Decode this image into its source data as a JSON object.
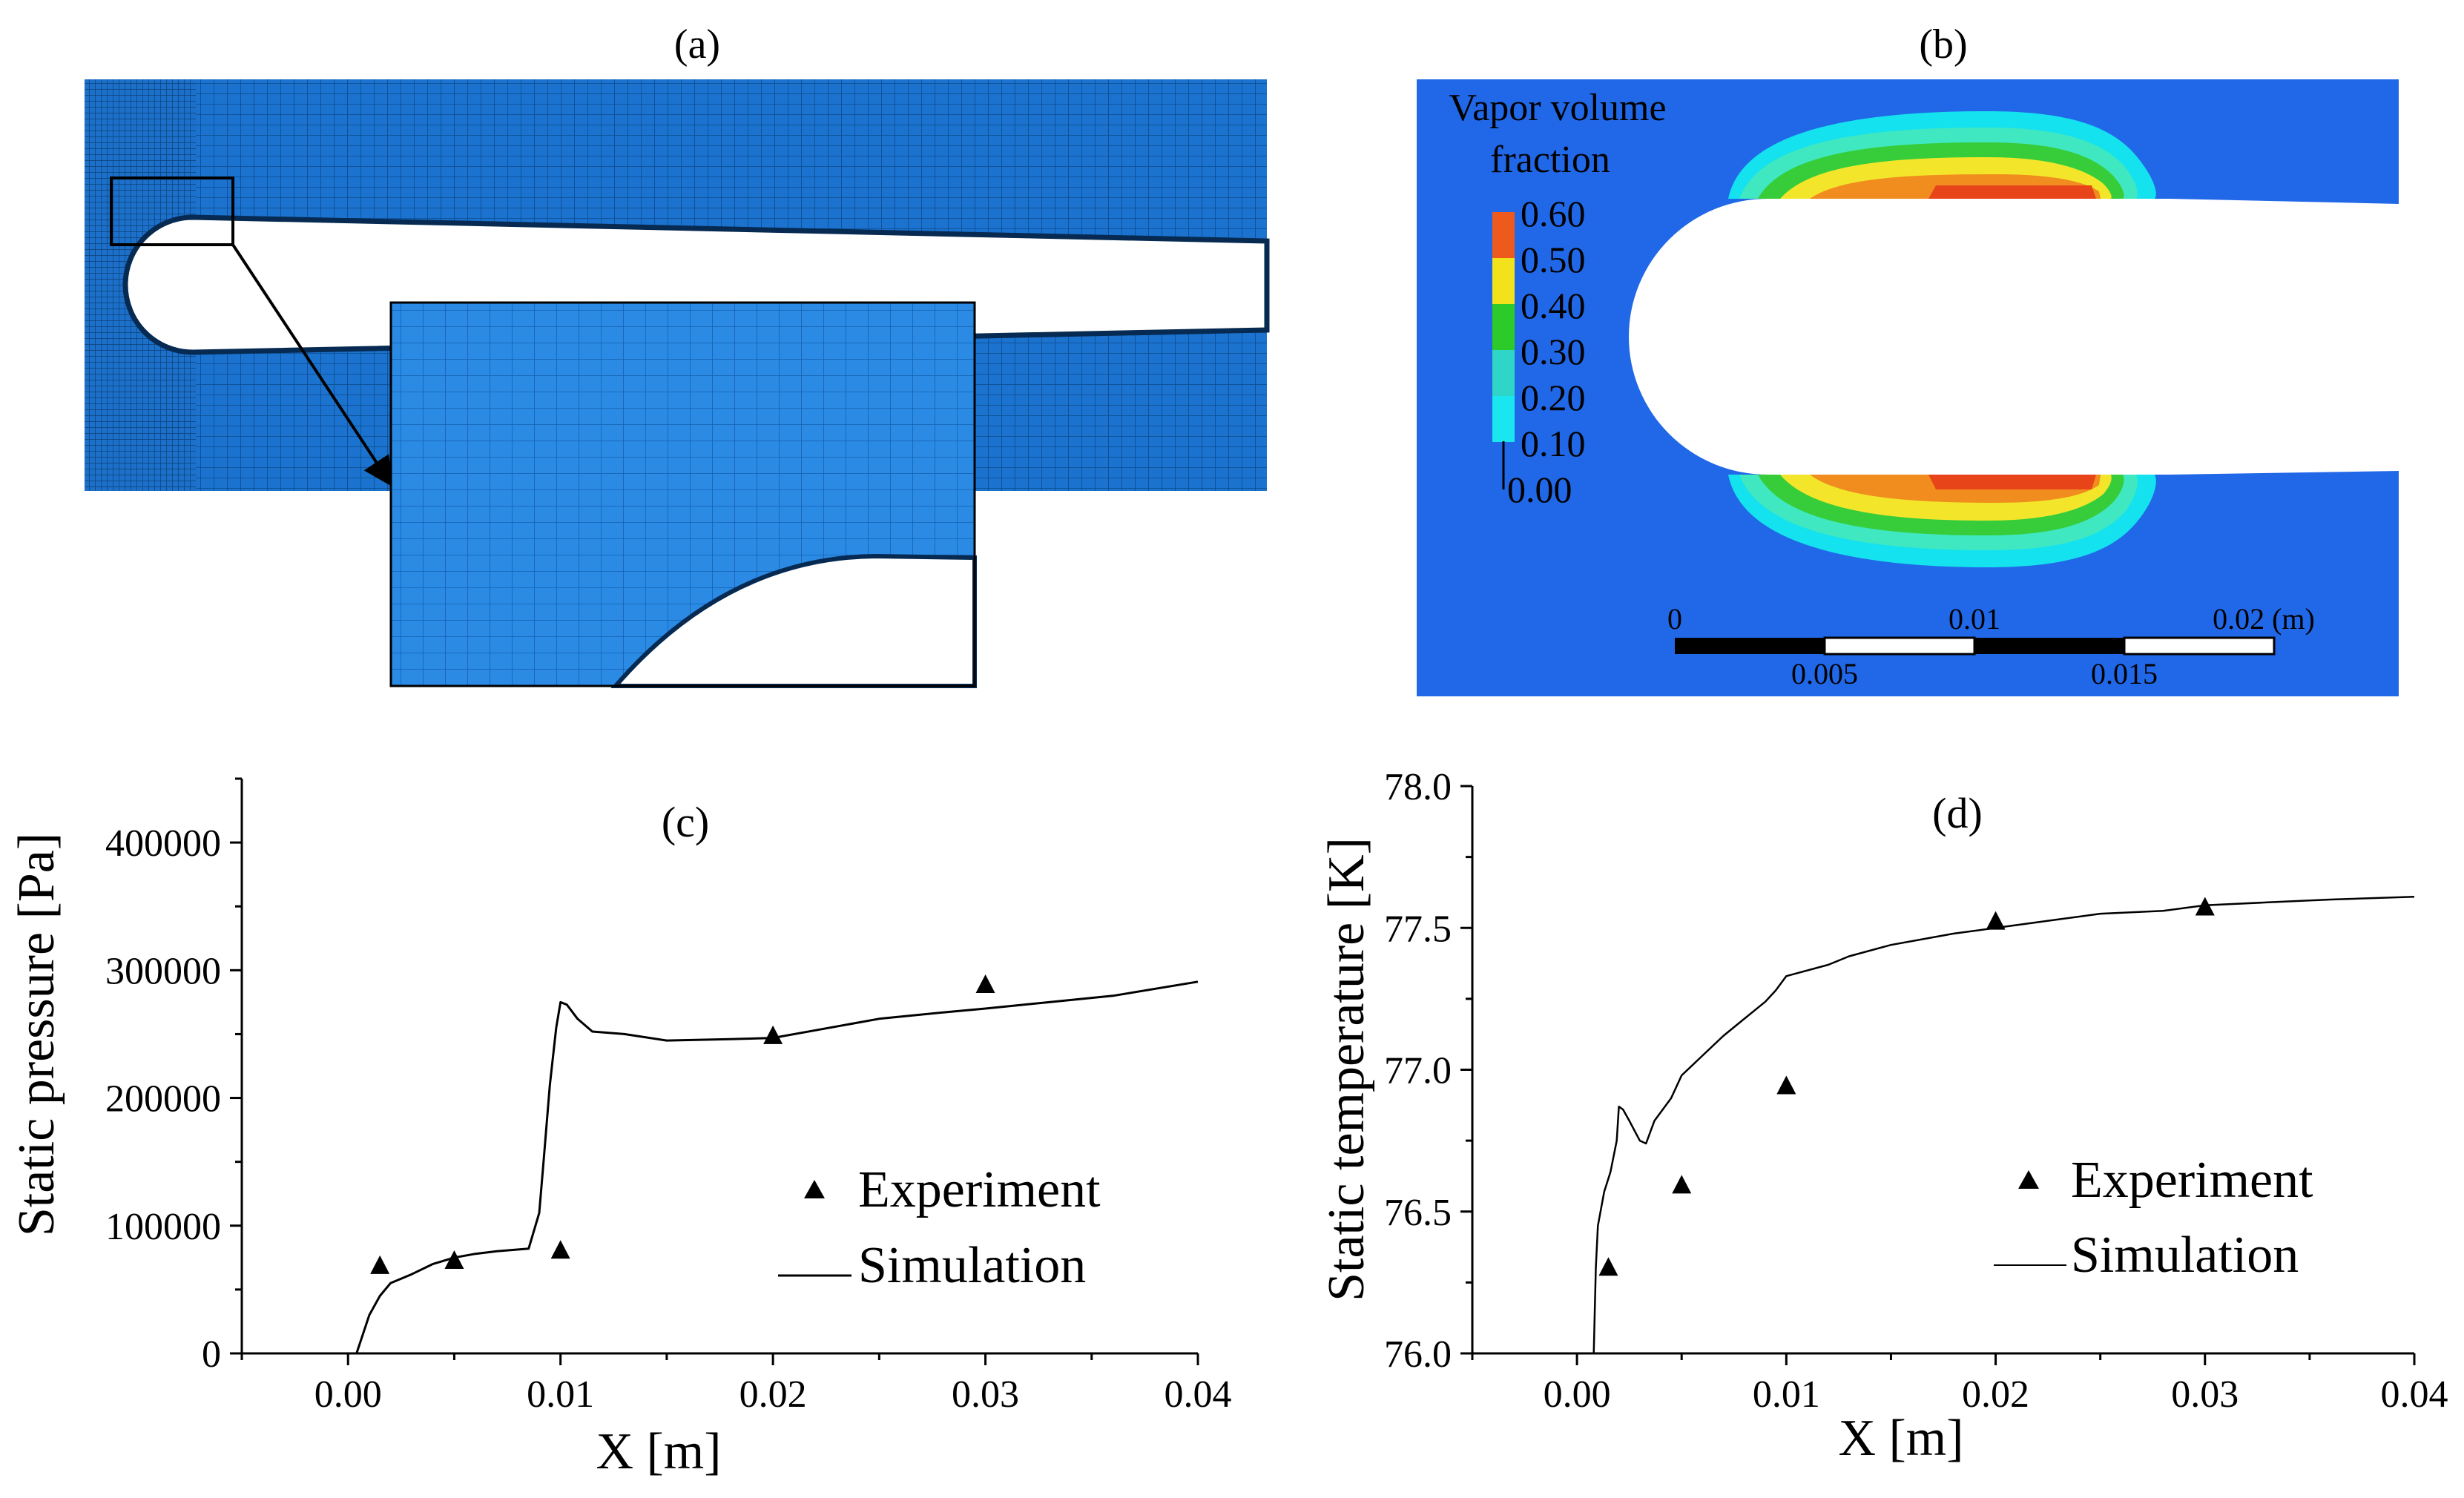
{
  "panels": {
    "a": {
      "label": "(a)"
    },
    "b": {
      "label": "(b)",
      "legend_title_line1": "Vapor volume",
      "legend_title_line2": "fraction",
      "legend_ticks": [
        "0.60",
        "0.50",
        "0.40",
        "0.30",
        "0.20",
        "0.10",
        "0.00"
      ],
      "legend_colors": [
        "#ee5a1e",
        "#f1e21c",
        "#2ccb29",
        "#2fd5c7",
        "#19e6ef"
      ],
      "contour_colors": {
        "background": "#2168e8",
        "cyan": "#14e2ee",
        "aqua": "#3fe8c0",
        "green": "#37cd3a",
        "yellow": "#f3e62a",
        "orange": "#f08d1e",
        "red": "#e8441a"
      },
      "scale_top_labels": [
        "0",
        "0.01",
        "0.02 (m)"
      ],
      "scale_bottom_labels": [
        "0.005",
        "0.015"
      ]
    }
  },
  "chart_data": [
    {
      "panel": "(c)",
      "type": "line",
      "title": "(c)",
      "xlabel": "X [m]",
      "ylabel": "Static pressure [Pa]",
      "xlim": [
        -0.005,
        0.04
      ],
      "ylim": [
        0,
        450000
      ],
      "xticks": [
        0.0,
        0.01,
        0.02,
        0.03,
        0.04
      ],
      "xtick_labels": [
        "0.00",
        "0.01",
        "0.02",
        "0.03",
        "0.04"
      ],
      "yticks": [
        0,
        100000,
        200000,
        300000,
        400000
      ],
      "ytick_labels": [
        "0",
        "100000",
        "200000",
        "300000",
        "400000"
      ],
      "legend": [
        "Experiment",
        "Simulation"
      ],
      "legend_position": "center-right",
      "series": [
        {
          "name": "Experiment",
          "kind": "scatter",
          "marker": "triangle",
          "x": [
            0.0015,
            0.005,
            0.01,
            0.02,
            0.03
          ],
          "y": [
            68000,
            72000,
            80000,
            248000,
            288000
          ]
        },
        {
          "name": "Simulation",
          "kind": "line",
          "x": [
            0.0004,
            0.0007,
            0.001,
            0.0015,
            0.002,
            0.003,
            0.004,
            0.005,
            0.006,
            0.007,
            0.0085,
            0.009,
            0.0092,
            0.0095,
            0.0098,
            0.01,
            0.0103,
            0.0108,
            0.0115,
            0.013,
            0.015,
            0.018,
            0.02,
            0.022,
            0.025,
            0.028,
            0.03,
            0.033,
            0.036,
            0.04
          ],
          "y": [
            0,
            15000,
            30000,
            45000,
            55000,
            62000,
            70000,
            75000,
            78000,
            80000,
            82000,
            110000,
            150000,
            210000,
            255000,
            275000,
            273000,
            262000,
            252000,
            250000,
            245000,
            246000,
            247000,
            253000,
            262000,
            267000,
            270000,
            275000,
            280000,
            291000
          ]
        }
      ]
    },
    {
      "panel": "(d)",
      "type": "line",
      "title": "(d)",
      "xlabel": "X [m]",
      "ylabel": "Static temperature [K]",
      "xlim": [
        -0.005,
        0.04
      ],
      "ylim": [
        76.0,
        78.0
      ],
      "xticks": [
        0.0,
        0.01,
        0.02,
        0.03,
        0.04
      ],
      "xtick_labels": [
        "0.00",
        "0.01",
        "0.02",
        "0.03",
        "0.04"
      ],
      "yticks": [
        76.0,
        76.5,
        77.0,
        77.5,
        78.0
      ],
      "ytick_labels": [
        "76.0",
        "76.5",
        "77.0",
        "77.5",
        "78.0"
      ],
      "legend": [
        "Experiment",
        "Simulation"
      ],
      "legend_position": "center-right",
      "series": [
        {
          "name": "Experiment",
          "kind": "scatter",
          "marker": "triangle",
          "x": [
            0.0015,
            0.005,
            0.01,
            0.02,
            0.03
          ],
          "y": [
            76.3,
            76.59,
            76.94,
            77.52,
            77.57
          ]
        },
        {
          "name": "Simulation",
          "kind": "line",
          "x": [
            0.0008,
            0.0009,
            0.001,
            0.0013,
            0.0016,
            0.0019,
            0.002,
            0.0022,
            0.0025,
            0.003,
            0.0033,
            0.0037,
            0.0045,
            0.005,
            0.006,
            0.007,
            0.008,
            0.009,
            0.0095,
            0.01,
            0.0105,
            0.012,
            0.013,
            0.015,
            0.018,
            0.02,
            0.023,
            0.025,
            0.028,
            0.03,
            0.033,
            0.036,
            0.04
          ],
          "y": [
            76.0,
            76.3,
            76.45,
            76.57,
            76.64,
            76.75,
            76.87,
            76.86,
            76.82,
            76.75,
            76.74,
            76.82,
            76.9,
            76.98,
            77.05,
            77.12,
            77.18,
            77.24,
            77.28,
            77.33,
            77.34,
            77.37,
            77.4,
            77.44,
            77.48,
            77.5,
            77.53,
            77.55,
            77.56,
            77.58,
            77.59,
            77.6,
            77.61
          ]
        }
      ]
    }
  ]
}
